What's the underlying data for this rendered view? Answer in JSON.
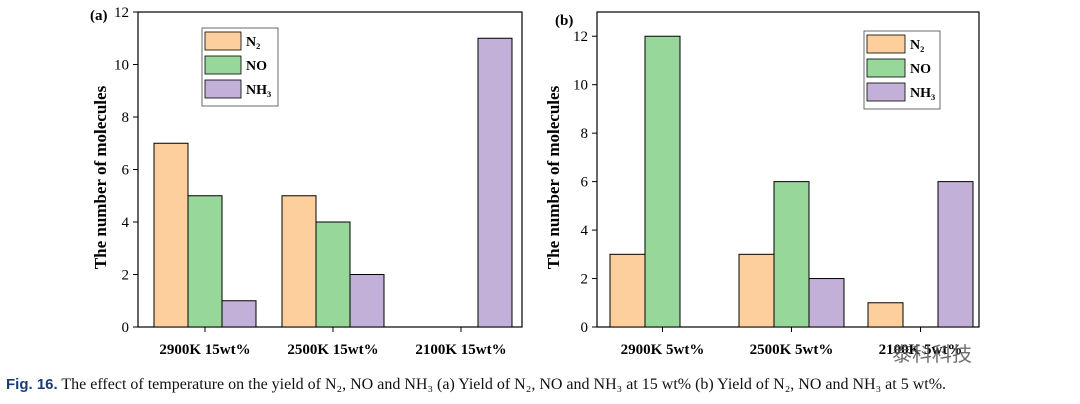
{
  "colors": {
    "N2": "#fdcf9c",
    "NO": "#98d79a",
    "NH3": "#c2b0d8",
    "stroke": "#000000"
  },
  "chart_data": [
    {
      "type": "bar",
      "panel_label": "(a)",
      "ylabel": "The number of molecules",
      "ylim": [
        0,
        12
      ],
      "yticks": [
        0,
        2,
        4,
        6,
        8,
        10,
        12
      ],
      "categories": [
        "2900K 15wt%",
        "2500K 15wt%",
        "2100K 15wt%"
      ],
      "series": [
        {
          "name": "N₂",
          "values": [
            7,
            5,
            0
          ]
        },
        {
          "name": "NO",
          "values": [
            5,
            4,
            0
          ]
        },
        {
          "name": "NH₃",
          "values": [
            1,
            2,
            11
          ]
        }
      ],
      "legend_position": "top-left"
    },
    {
      "type": "bar",
      "panel_label": "(b)",
      "ylabel": "The number of molecules",
      "ylim": [
        0,
        13
      ],
      "yticks": [
        0,
        2,
        4,
        6,
        8,
        10,
        12
      ],
      "categories": [
        "2900K 5wt%",
        "2500K 5wt%",
        "2100K 5wt%"
      ],
      "series": [
        {
          "name": "N₂",
          "values": [
            3,
            3,
            1
          ]
        },
        {
          "name": "NO",
          "values": [
            12,
            6,
            0
          ]
        },
        {
          "name": "NH₃",
          "values": [
            0,
            2,
            6
          ]
        }
      ],
      "legend_position": "top-right"
    }
  ],
  "caption": {
    "label": "Fig. 16.",
    "text": "The effect of temperature on the yield of N₂, NO and NH₃ (a) Yield of N₂, NO and NH₃ at 15 wt% (b) Yield of N₂, NO and NH₃ at 5 wt%."
  },
  "watermark": "泰科科技"
}
